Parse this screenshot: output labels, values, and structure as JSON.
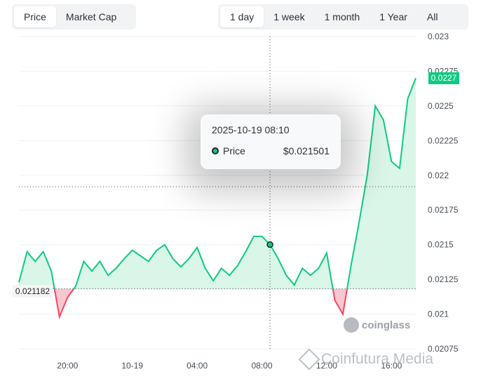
{
  "metric_tabs": {
    "items": [
      {
        "label": "Price",
        "active": true
      },
      {
        "label": "Market Cap",
        "active": false
      }
    ]
  },
  "range_tabs": {
    "items": [
      {
        "label": "1 day",
        "active": true
      },
      {
        "label": "1 week",
        "active": false
      },
      {
        "label": "1 month",
        "active": false
      },
      {
        "label": "1 Year",
        "active": false
      },
      {
        "label": "All",
        "active": false
      }
    ]
  },
  "tooltip": {
    "date": "2025-10-19 08:10",
    "label": "Price",
    "value": "$0.021501"
  },
  "last_price_badge": "0.0227",
  "start_price_badge": "0.021182",
  "brand": "coinglass",
  "watermark": "Coinfutura Media",
  "colors": {
    "up": "#0ecb81",
    "down": "#f6465d",
    "up_fill": "#d9f6e8",
    "down_fill": "#f9c7cf",
    "grid": "#eef0f2",
    "axis_text": "#474d57"
  },
  "chart_data": {
    "type": "area",
    "baseline": 0.021182,
    "ylim": [
      0.02075,
      0.023
    ],
    "yticks": [
      "0.023",
      "0.02275",
      "0.0225",
      "0.02225",
      "0.022",
      "0.02175",
      "0.0215",
      "0.02125",
      "0.021",
      "0.02075"
    ],
    "xticks": [
      "20:00",
      "10-19",
      "04:00",
      "08:00",
      "12:00",
      "16:00"
    ],
    "x": [
      "17:00",
      "17:30",
      "18:00",
      "18:30",
      "19:00",
      "19:30",
      "20:00",
      "20:30",
      "21:00",
      "21:30",
      "22:00",
      "22:30",
      "23:00",
      "23:30",
      "00:00",
      "00:30",
      "01:00",
      "01:30",
      "02:00",
      "02:30",
      "03:00",
      "03:30",
      "04:00",
      "04:30",
      "05:00",
      "05:30",
      "06:00",
      "06:30",
      "07:00",
      "07:30",
      "08:00",
      "08:10",
      "08:30",
      "09:00",
      "09:30",
      "10:00",
      "10:30",
      "11:00",
      "11:30",
      "12:00",
      "12:30",
      "13:00",
      "13:30",
      "14:00",
      "14:30",
      "15:00",
      "15:30",
      "16:00",
      "16:30",
      "17:00"
    ],
    "values": [
      0.02123,
      0.02145,
      0.02138,
      0.02145,
      0.02131,
      0.02098,
      0.02112,
      0.0212,
      0.02138,
      0.02131,
      0.02138,
      0.02128,
      0.02133,
      0.0214,
      0.02146,
      0.02142,
      0.02138,
      0.02146,
      0.0215,
      0.0214,
      0.02134,
      0.0214,
      0.02148,
      0.02133,
      0.02124,
      0.02133,
      0.02128,
      0.02135,
      0.02145,
      0.02156,
      0.02156,
      0.021501,
      0.0214,
      0.02128,
      0.02121,
      0.02133,
      0.02128,
      0.02133,
      0.02144,
      0.0211,
      0.021,
      0.02135,
      0.02166,
      0.022,
      0.0225,
      0.0224,
      0.0221,
      0.02205,
      0.02255,
      0.0227
    ]
  }
}
